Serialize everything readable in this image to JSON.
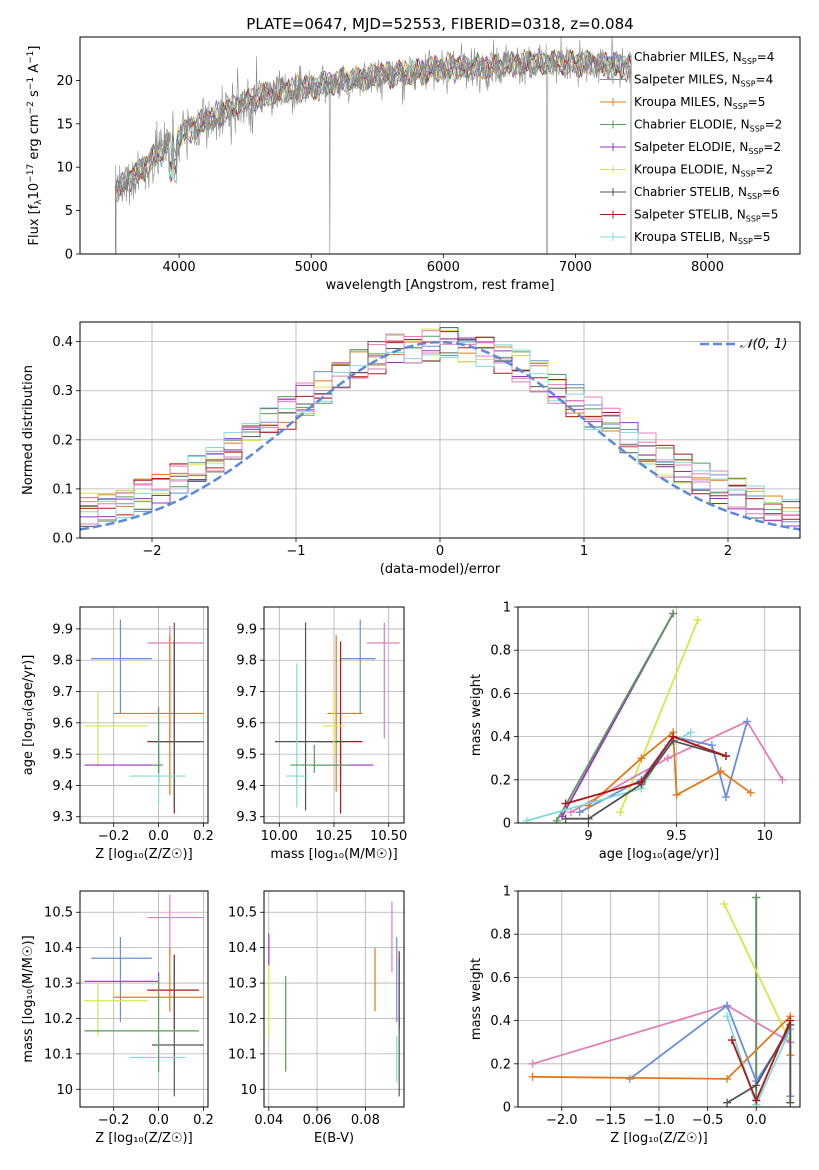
{
  "title": "PLATE=0647, MJD=52553, FIBERID=0318, z=0.084",
  "colors": {
    "Chabrier MILES": "#6a8fd8",
    "Salpeter MILES": "#8a8a8a",
    "Kroupa MILES": "#e07b1a",
    "Chabrier ELODIE": "#5a9a5a",
    "Salpeter ELODIE": "#9b30c8",
    "Kroupa ELODIE": "#d4e84a",
    "Chabrier STELIB": "#555555",
    "Salpeter STELIB": "#b01818",
    "Kroupa STELIB": "#80dada",
    "pink": "#e27fb8",
    "normal": "#5b8ad6"
  },
  "legend_spectrum": [
    {
      "name": "Chabrier MILES",
      "nssp": "4"
    },
    {
      "name": "Salpeter MILES",
      "nssp": "4"
    },
    {
      "name": "Kroupa MILES",
      "nssp": "5"
    },
    {
      "name": "Chabrier ELODIE",
      "nssp": "2"
    },
    {
      "name": "Salpeter ELODIE",
      "nssp": "2"
    },
    {
      "name": "Kroupa ELODIE",
      "nssp": "2"
    },
    {
      "name": "Chabrier STELIB",
      "nssp": "6"
    },
    {
      "name": "Salpeter STELIB",
      "nssp": "5"
    },
    {
      "name": "Kroupa STELIB",
      "nssp": "5"
    }
  ],
  "legend_normal": "𝒩(0, 1)",
  "chart_data": [
    {
      "id": "spectrum",
      "type": "line",
      "xlabel": "wavelength [Angstrom, rest frame]",
      "ylabel_parts": [
        "Flux [f",
        "λ",
        "10",
        "−17",
        " erg cm",
        "−2",
        " s",
        "−1",
        " A",
        "−1",
        "]"
      ],
      "xlim": [
        3250,
        8700
      ],
      "ylim": [
        0,
        25
      ],
      "xticks": [
        4000,
        5000,
        6000,
        7000,
        8000
      ],
      "yticks": [
        0,
        5,
        10,
        15,
        20
      ],
      "wavelength_range": [
        3520,
        7420
      ],
      "continuum_x": [
        3520,
        3700,
        3900,
        4100,
        4300,
        4500,
        4700,
        4900,
        5100,
        5300,
        5500,
        5800,
        6000,
        6300,
        6600,
        6800,
        7000,
        7200,
        7420
      ],
      "continuum_y": [
        7.5,
        9.5,
        12.5,
        14.5,
        16.0,
        17.5,
        18.5,
        19.0,
        19.5,
        20.0,
        20.5,
        21.0,
        21.5,
        21.5,
        22.0,
        22.0,
        22.0,
        21.8,
        21.5
      ]
    },
    {
      "id": "residuals",
      "type": "histogram",
      "xlabel": "(data-model)/error",
      "ylabel": "Normed distribution",
      "xlim": [
        -2.5,
        2.5
      ],
      "ylim": [
        0,
        0.44
      ],
      "xticks": [
        -2,
        -1,
        0,
        1,
        2
      ],
      "xtick_labels": [
        "−2",
        "−1",
        "0",
        "1",
        "2"
      ],
      "yticks": [
        0.0,
        0.1,
        0.2,
        0.3,
        0.4
      ],
      "ytick_labels": [
        "0.0",
        "0.1",
        "0.2",
        "0.3",
        "0.4"
      ],
      "bin_edges_range": [
        -2.5,
        2.5
      ],
      "n_bins": 40,
      "normal_curve": {
        "mu": 0,
        "sigma": 1
      }
    },
    {
      "id": "Z-age",
      "type": "scatter",
      "xlabel": "Z [log₁₀(Z/Z☉)]",
      "ylabel": "age  [log₁₀(age/yr)]",
      "xlim": [
        -0.35,
        0.22
      ],
      "ylim": [
        9.28,
        9.97
      ],
      "xticks": [
        -0.2,
        0.0,
        0.2
      ],
      "xtick_labels": [
        "−0.2",
        "0.0",
        "0.2"
      ],
      "yticks": [
        9.3,
        9.4,
        9.5,
        9.6,
        9.7,
        9.8,
        9.9
      ],
      "points": [
        {
          "c": "Chabrier MILES",
          "x": -0.17,
          "y": 9.805,
          "xe": [
            -0.3,
            -0.03
          ],
          "ye": [
            9.63,
            9.93
          ]
        },
        {
          "c": "pink",
          "x": 0.05,
          "y": 9.855,
          "xe": [
            -0.05,
            0.2
          ],
          "ye": [
            9.55,
            9.91
          ]
        },
        {
          "c": "Kroupa MILES",
          "x": 0.05,
          "y": 9.63,
          "xe": [
            -0.2,
            0.2
          ],
          "ye": [
            9.37,
            9.88
          ]
        },
        {
          "c": "Kroupa ELODIE",
          "x": -0.27,
          "y": 9.59,
          "xe": [
            -0.33,
            -0.05
          ],
          "ye": [
            9.46,
            9.7
          ]
        },
        {
          "c": "Salpeter ELODIE",
          "x": 0.0,
          "y": 9.465,
          "xe": [
            -0.33,
            0.0
          ],
          "ye": [
            9.41,
            9.53
          ]
        },
        {
          "c": "Salpeter STELIB",
          "x": 0.07,
          "y": 9.54,
          "xe": [
            -0.05,
            0.18
          ],
          "ye": [
            9.31,
            9.86
          ]
        },
        {
          "c": "Chabrier STELIB",
          "x": 0.07,
          "y": 9.54,
          "xe": [
            -0.03,
            0.2
          ],
          "ye": [
            9.33,
            9.92
          ]
        },
        {
          "c": "Kroupa STELIB",
          "x": 0.0,
          "y": 9.43,
          "xe": [
            -0.13,
            0.12
          ],
          "ye": [
            9.34,
            9.6
          ]
        },
        {
          "c": "Chabrier ELODIE",
          "x": 0.0,
          "y": 9.465,
          "xe": [
            -0.03,
            0.02
          ],
          "ye": [
            9.44,
            9.65
          ]
        }
      ]
    },
    {
      "id": "mass-age",
      "type": "scatter",
      "xlabel": "mass [log₁₀(M/M☉)]",
      "ylabel": "",
      "xlim": [
        9.93,
        10.57
      ],
      "ylim": [
        9.28,
        9.97
      ],
      "xticks": [
        10.0,
        10.25,
        10.5
      ],
      "xtick_labels": [
        "10.00",
        "10.25",
        "10.50"
      ],
      "yticks": [
        9.3,
        9.4,
        9.5,
        9.6,
        9.7,
        9.8,
        9.9
      ],
      "points": [
        {
          "c": "Chabrier MILES",
          "x": 10.37,
          "y": 9.805,
          "xe": [
            10.28,
            10.44
          ],
          "ye": [
            9.63,
            9.93
          ]
        },
        {
          "c": "pink",
          "x": 10.48,
          "y": 9.855,
          "xe": [
            10.4,
            10.55
          ],
          "ye": [
            9.55,
            9.92
          ]
        },
        {
          "c": "Kroupa MILES",
          "x": 10.26,
          "y": 9.63,
          "xe": [
            10.22,
            10.38
          ],
          "ye": [
            9.38,
            9.88
          ]
        },
        {
          "c": "Salpeter ELODIE",
          "x": 10.28,
          "y": 9.465,
          "xe": [
            10.15,
            10.43
          ],
          "ye": [
            9.41,
            9.53
          ]
        },
        {
          "c": "Salpeter STELIB",
          "x": 10.28,
          "y": 9.54,
          "xe": [
            10.17,
            10.38
          ],
          "ye": [
            9.31,
            9.86
          ]
        },
        {
          "c": "Chabrier STELIB",
          "x": 10.12,
          "y": 9.54,
          "xe": [
            9.98,
            10.27
          ],
          "ye": [
            9.32,
            9.92
          ]
        },
        {
          "c": "Kroupa STELIB",
          "x": 10.08,
          "y": 9.43,
          "xe": [
            10.03,
            10.13
          ],
          "ye": [
            9.33,
            9.79
          ]
        },
        {
          "c": "Chabrier ELODIE",
          "x": 10.16,
          "y": 9.465,
          "xe": [
            10.05,
            10.32
          ],
          "ye": [
            9.44,
            9.53
          ]
        },
        {
          "c": "Kroupa ELODIE",
          "x": 10.25,
          "y": 9.59,
          "xe": [
            10.2,
            10.3
          ],
          "ye": [
            9.5,
            9.7
          ]
        }
      ]
    },
    {
      "id": "age-weight",
      "type": "line",
      "xlabel": "age  [log₁₀(age/yr)]",
      "ylabel": "mass weight",
      "xlim": [
        8.6,
        10.2
      ],
      "ylim": [
        0,
        1
      ],
      "xticks": [
        9.0,
        9.5,
        10.0
      ],
      "yticks": [
        0.0,
        0.2,
        0.4,
        0.6,
        0.8,
        1.0
      ],
      "series": [
        {
          "c": "Salpeter ELODIE",
          "x": [
            8.85,
            9.48
          ],
          "y": [
            0.03,
            0.97
          ]
        },
        {
          "c": "Chabrier ELODIE",
          "x": [
            8.82,
            9.48
          ],
          "y": [
            0.01,
            0.97
          ]
        },
        {
          "c": "Kroupa ELODIE",
          "x": [
            9.18,
            9.62
          ],
          "y": [
            0.05,
            0.94
          ]
        },
        {
          "c": "pink",
          "x": [
            8.9,
            9.45,
            9.9,
            10.1
          ],
          "y": [
            0.05,
            0.3,
            0.47,
            0.2
          ]
        },
        {
          "c": "Chabrier MILES",
          "x": [
            8.95,
            9.3,
            9.48,
            9.7,
            9.78,
            9.9
          ],
          "y": [
            0.05,
            0.2,
            0.4,
            0.36,
            0.12,
            0.47
          ]
        },
        {
          "c": "Kroupa MILES",
          "x": [
            9.0,
            9.3,
            9.48,
            9.5,
            9.75,
            9.92
          ],
          "y": [
            0.08,
            0.3,
            0.42,
            0.13,
            0.24,
            0.14
          ]
        },
        {
          "c": "Kroupa STELIB",
          "x": [
            8.65,
            9.3,
            9.45,
            9.58
          ],
          "y": [
            0.01,
            0.16,
            0.36,
            0.42
          ]
        },
        {
          "c": "Chabrier STELIB",
          "x": [
            8.87,
            9.0,
            9.3,
            9.48,
            9.78
          ],
          "y": [
            0.02,
            0.02,
            0.18,
            0.38,
            0.31
          ]
        },
        {
          "c": "Salpeter STELIB",
          "x": [
            8.87,
            9.3,
            9.48,
            9.78
          ],
          "y": [
            0.09,
            0.19,
            0.4,
            0.31
          ]
        }
      ]
    },
    {
      "id": "Z-mass",
      "type": "scatter",
      "xlabel": "Z [log₁₀(Z/Z☉)]",
      "ylabel": "mass [log₁₀(M/M☉)]",
      "xlim": [
        -0.35,
        0.22
      ],
      "ylim": [
        9.95,
        10.56
      ],
      "xticks": [
        -0.2,
        0.0,
        0.2
      ],
      "xtick_labels": [
        "−0.2",
        "0.0",
        "0.2"
      ],
      "yticks": [
        10.0,
        10.1,
        10.2,
        10.3,
        10.4,
        10.5
      ],
      "points": [
        {
          "c": "Chabrier MILES",
          "x": -0.17,
          "y": 10.37,
          "xe": [
            -0.3,
            -0.03
          ],
          "ye": [
            10.19,
            10.43
          ]
        },
        {
          "c": "pink",
          "x": 0.05,
          "y": 10.485,
          "xe": [
            -0.05,
            0.2
          ],
          "ye": [
            10.38,
            10.55
          ]
        },
        {
          "c": "Kroupa MILES",
          "x": 0.05,
          "y": 10.26,
          "xe": [
            -0.2,
            0.2
          ],
          "ye": [
            10.22,
            10.4
          ]
        },
        {
          "c": "Kroupa ELODIE",
          "x": -0.27,
          "y": 10.25,
          "xe": [
            -0.33,
            -0.05
          ],
          "ye": [
            10.15,
            10.3
          ]
        },
        {
          "c": "Salpeter ELODIE",
          "x": 0.0,
          "y": 10.305,
          "xe": [
            -0.33,
            0.0
          ],
          "ye": [
            10.28,
            10.33
          ]
        },
        {
          "c": "Salpeter STELIB",
          "x": 0.07,
          "y": 10.28,
          "xe": [
            -0.05,
            0.18
          ],
          "ye": [
            10.17,
            10.38
          ]
        },
        {
          "c": "Chabrier STELIB",
          "x": 0.07,
          "y": 10.125,
          "xe": [
            -0.03,
            0.2
          ],
          "ye": [
            9.98,
            10.37
          ]
        },
        {
          "c": "Kroupa STELIB",
          "x": 0.0,
          "y": 10.09,
          "xe": [
            -0.13,
            0.12
          ],
          "ye": [
            10.03,
            10.15
          ]
        },
        {
          "c": "Chabrier ELODIE",
          "x": 0.0,
          "y": 10.165,
          "xe": [
            -0.33,
            0.18
          ],
          "ye": [
            10.05,
            10.32
          ]
        }
      ]
    },
    {
      "id": "ebv-mass",
      "type": "scatter",
      "xlabel": "E(B-V)",
      "ylabel": "",
      "xlim": [
        0.038,
        0.096
      ],
      "ylim": [
        9.95,
        10.56
      ],
      "xticks": [
        0.04,
        0.06,
        0.08
      ],
      "xtick_labels": [
        "0.04",
        "0.06",
        "0.08"
      ],
      "yticks": [
        10.0,
        10.1,
        10.2,
        10.3,
        10.4,
        10.5
      ],
      "points": [
        {
          "c": "Salpeter ELODIE",
          "x": 0.04,
          "y": 10.39,
          "xe": [
            0.04,
            0.04
          ],
          "ye": [
            10.35,
            10.44
          ]
        },
        {
          "c": "Kroupa ELODIE",
          "x": 0.04,
          "y": 10.25,
          "xe": [
            0.04,
            0.04
          ],
          "ye": [
            10.15,
            10.35
          ]
        },
        {
          "c": "Chabrier ELODIE",
          "x": 0.047,
          "y": 10.18,
          "xe": [
            0.047,
            0.047
          ],
          "ye": [
            10.05,
            10.32
          ]
        },
        {
          "c": "Kroupa MILES",
          "x": 0.084,
          "y": 10.3,
          "xe": [
            0.084,
            0.084
          ],
          "ye": [
            10.22,
            10.4
          ]
        },
        {
          "c": "pink",
          "x": 0.091,
          "y": 10.43,
          "xe": [
            0.091,
            0.091
          ],
          "ye": [
            10.33,
            10.53
          ]
        },
        {
          "c": "Salpeter STELIB",
          "x": 0.094,
          "y": 10.28,
          "xe": [
            0.094,
            0.094
          ],
          "ye": [
            10.17,
            10.39
          ]
        },
        {
          "c": "Chabrier STELIB",
          "x": 0.094,
          "y": 10.12,
          "xe": [
            0.094,
            0.094
          ],
          "ye": [
            9.98,
            10.37
          ]
        },
        {
          "c": "Kroupa STELIB",
          "x": 0.093,
          "y": 10.09,
          "xe": [
            0.093,
            0.093
          ],
          "ye": [
            10.02,
            10.15
          ]
        },
        {
          "c": "Chabrier MILES",
          "x": 0.093,
          "y": 10.33,
          "xe": [
            0.093,
            0.093
          ],
          "ye": [
            10.19,
            10.43
          ]
        }
      ]
    },
    {
      "id": "Z-weight",
      "type": "line",
      "xlabel": "Z [log₁₀(Z/Z☉)]",
      "ylabel": "mass weight",
      "xlim": [
        -2.45,
        0.45
      ],
      "ylim": [
        0,
        1
      ],
      "xticks": [
        -2.0,
        -1.5,
        -1.0,
        -0.5,
        0.0
      ],
      "xtick_labels": [
        "−2.0",
        "−1.5",
        "−1.0",
        "−0.5",
        "0.0"
      ],
      "yticks": [
        0.0,
        0.2,
        0.4,
        0.6,
        0.8,
        1.0
      ],
      "series": [
        {
          "c": "Salpeter ELODIE",
          "x": [
            0.0,
            0.0
          ],
          "y": [
            0.97,
            0.03
          ]
        },
        {
          "c": "Chabrier ELODIE",
          "x": [
            0.0,
            0.0
          ],
          "y": [
            0.97,
            0.01
          ]
        },
        {
          "c": "Kroupa ELODIE",
          "x": [
            -0.33,
            0.35,
            0.35
          ],
          "y": [
            0.94,
            0.3,
            0.05
          ]
        },
        {
          "c": "pink",
          "x": [
            -2.3,
            -0.3,
            0.35
          ],
          "y": [
            0.2,
            0.47,
            0.3
          ]
        },
        {
          "c": "Chabrier MILES",
          "x": [
            -1.3,
            -0.3,
            0.0,
            0.35,
            0.35
          ],
          "y": [
            0.13,
            0.47,
            0.12,
            0.36,
            0.05
          ]
        },
        {
          "c": "Kroupa MILES",
          "x": [
            -2.3,
            -0.3,
            0.35,
            0.35
          ],
          "y": [
            0.14,
            0.13,
            0.42,
            0.24
          ]
        },
        {
          "c": "Kroupa STELIB",
          "x": [
            -0.3,
            0.0,
            0.35
          ],
          "y": [
            0.42,
            0.01,
            0.36
          ]
        },
        {
          "c": "Chabrier STELIB",
          "x": [
            -0.3,
            0.0,
            0.35,
            0.35
          ],
          "y": [
            0.02,
            0.1,
            0.38,
            0.02
          ]
        },
        {
          "c": "Salpeter STELIB",
          "x": [
            -0.25,
            0.0,
            0.35
          ],
          "y": [
            0.31,
            0.03,
            0.4
          ]
        }
      ]
    }
  ]
}
